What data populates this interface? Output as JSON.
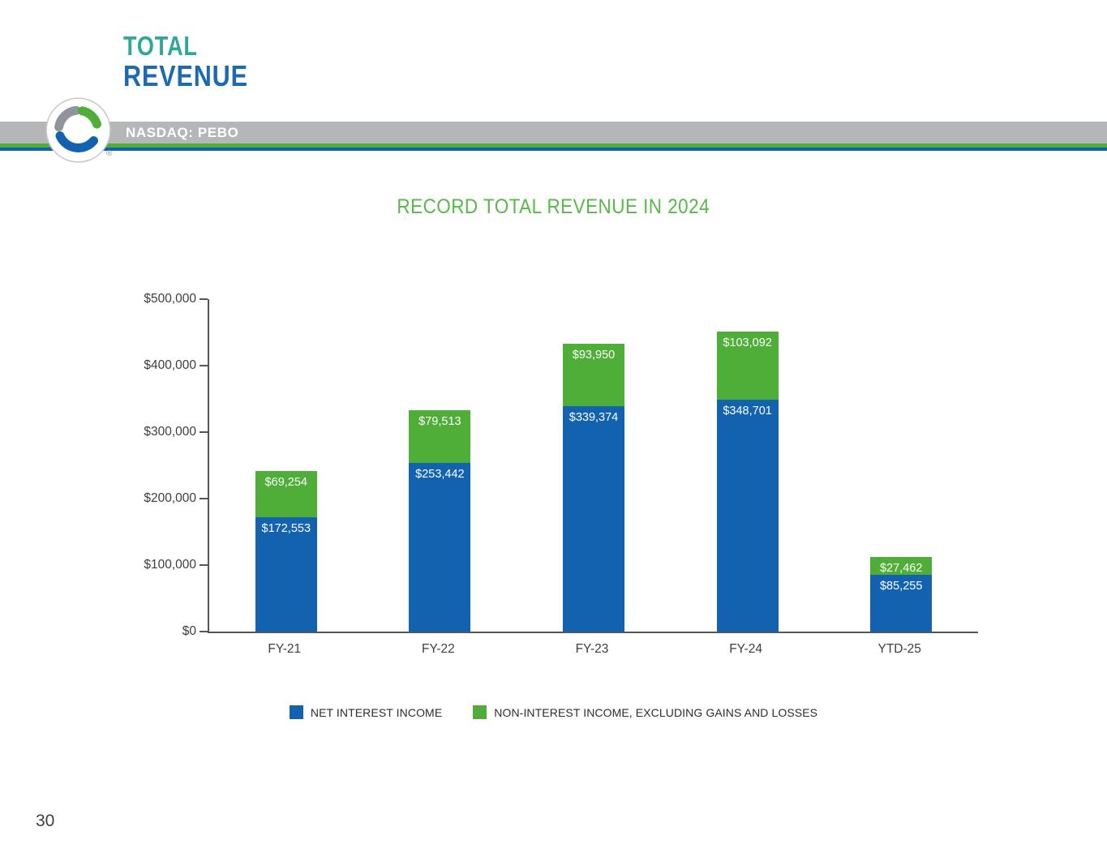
{
  "header": {
    "title_line1": "TOTAL",
    "title_line2": "REVENUE",
    "ticker": "NASDAQ: PEBO",
    "registered_mark": "®"
  },
  "slide": {
    "title": "RECORD TOTAL REVENUE IN 2024",
    "page_number": "30"
  },
  "colors": {
    "bar_blue": "#1362b0",
    "bar_green": "#4fae38",
    "title_green": "#56b948",
    "heading_teal": "#2fa79d",
    "heading_blue": "#1b6ab2",
    "band_gray": "#b4b6b8",
    "axis_gray": "#54565a"
  },
  "chart_data": {
    "type": "bar",
    "stacked": true,
    "title": "RECORD TOTAL REVENUE IN 2024",
    "categories": [
      "FY-21",
      "FY-22",
      "FY-23",
      "FY-24",
      "YTD-25"
    ],
    "series": [
      {
        "name": "NET INTEREST INCOME",
        "color": "#1362b0",
        "values": [
          172553,
          253442,
          339374,
          348701,
          85255
        ],
        "labels": [
          "$172,553",
          "$253,442",
          "$339,374",
          "$348,701",
          "$85,255"
        ]
      },
      {
        "name": "NON-INTEREST INCOME, EXCLUDING GAINS AND LOSSES",
        "color": "#4fae38",
        "values": [
          69254,
          79513,
          93950,
          103092,
          27462
        ],
        "labels": [
          "$69,254",
          "$79,513",
          "$93,950",
          "$103,092",
          "$27,462"
        ]
      }
    ],
    "ylim": [
      0,
      500000
    ],
    "ytick_interval": 100000,
    "ytick_labels": [
      "$0",
      "$100,000",
      "$200,000",
      "$300,000",
      "$400,000",
      "$500,000"
    ],
    "grid": false,
    "legend_position": "bottom",
    "value_labels": "inside-top-white"
  },
  "legend": {
    "items": [
      {
        "label": "NET INTEREST INCOME",
        "color": "#1362b0"
      },
      {
        "label": "NON-INTEREST INCOME, EXCLUDING GAINS AND LOSSES",
        "color": "#4fae38"
      }
    ]
  }
}
